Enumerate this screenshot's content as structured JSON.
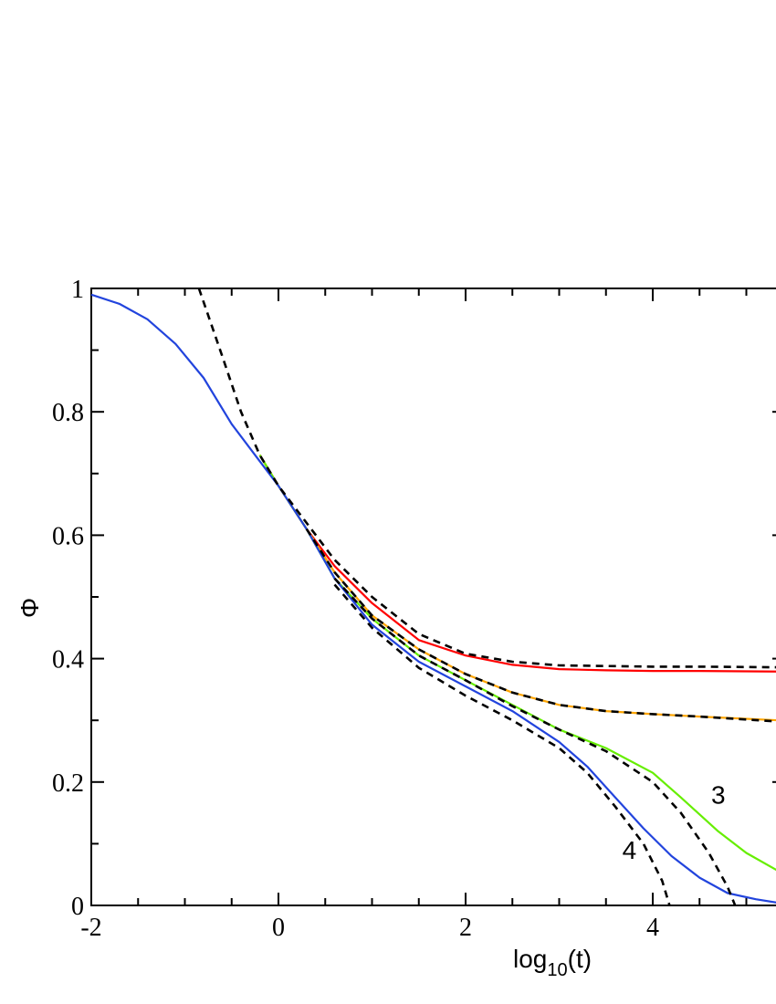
{
  "chart_data": {
    "type": "line",
    "title": "",
    "xlabel": {
      "base": "log",
      "sub": "10",
      "rest": "(t)"
    },
    "ylabel": "Φ",
    "xlim": [
      -2,
      5.35
    ],
    "ylim": [
      0,
      1
    ],
    "x_ticks": [
      "-2",
      "0",
      "2",
      "4"
    ],
    "y_ticks": [
      "0",
      "0.2",
      "0.4",
      "0.6",
      "0.8",
      "1"
    ],
    "grid": false,
    "annotations": [
      {
        "text": "3",
        "x": 4.7,
        "y": 0.18
      },
      {
        "text": "4",
        "x": 3.75,
        "y": 0.09
      }
    ],
    "series": [
      {
        "color": "#ff0000",
        "dash": "solid",
        "points": [
          [
            -0.2,
            0.73
          ],
          [
            0,
            0.68
          ],
          [
            0.3,
            0.61
          ],
          [
            0.6,
            0.55
          ],
          [
            1.0,
            0.49
          ],
          [
            1.5,
            0.43
          ],
          [
            2.0,
            0.405
          ],
          [
            2.5,
            0.39
          ],
          [
            3.0,
            0.383
          ],
          [
            3.5,
            0.381
          ],
          [
            4.0,
            0.38
          ],
          [
            4.5,
            0.38
          ],
          [
            5.35,
            0.379
          ]
        ]
      },
      {
        "color": "#ffa500",
        "dash": "solid",
        "points": [
          [
            -0.2,
            0.73
          ],
          [
            0,
            0.68
          ],
          [
            0.3,
            0.61
          ],
          [
            0.6,
            0.54
          ],
          [
            1.0,
            0.47
          ],
          [
            1.5,
            0.415
          ],
          [
            2.0,
            0.375
          ],
          [
            2.5,
            0.345
          ],
          [
            3.0,
            0.325
          ],
          [
            3.5,
            0.315
          ],
          [
            4.0,
            0.31
          ],
          [
            4.5,
            0.306
          ],
          [
            5.35,
            0.3
          ]
        ]
      },
      {
        "color": "#66ee00",
        "dash": "solid",
        "points": [
          [
            -0.2,
            0.73
          ],
          [
            0,
            0.68
          ],
          [
            0.3,
            0.61
          ],
          [
            0.6,
            0.53
          ],
          [
            1.0,
            0.465
          ],
          [
            1.5,
            0.405
          ],
          [
            2.0,
            0.365
          ],
          [
            2.5,
            0.325
          ],
          [
            3.0,
            0.285
          ],
          [
            3.5,
            0.255
          ],
          [
            4.0,
            0.215
          ],
          [
            4.3,
            0.175
          ],
          [
            4.7,
            0.12
          ],
          [
            5.0,
            0.085
          ],
          [
            5.35,
            0.055
          ]
        ]
      },
      {
        "color": "#2244dd",
        "dash": "solid",
        "points": [
          [
            -2,
            0.99
          ],
          [
            -1.7,
            0.975
          ],
          [
            -1.4,
            0.95
          ],
          [
            -1.1,
            0.91
          ],
          [
            -0.8,
            0.855
          ],
          [
            -0.5,
            0.78
          ],
          [
            -0.2,
            0.72
          ],
          [
            0,
            0.68
          ],
          [
            0.3,
            0.61
          ],
          [
            0.6,
            0.53
          ],
          [
            1.0,
            0.455
          ],
          [
            1.5,
            0.395
          ],
          [
            2.0,
            0.355
          ],
          [
            2.5,
            0.315
          ],
          [
            3.0,
            0.265
          ],
          [
            3.3,
            0.225
          ],
          [
            3.6,
            0.175
          ],
          [
            3.9,
            0.125
          ],
          [
            4.2,
            0.08
          ],
          [
            4.5,
            0.045
          ],
          [
            4.8,
            0.02
          ],
          [
            5.1,
            0.01
          ],
          [
            5.35,
            0.004
          ]
        ]
      },
      {
        "color": "#000000",
        "dash": "8,6",
        "points": [
          [
            -0.85,
            1.0
          ],
          [
            -0.6,
            0.89
          ],
          [
            -0.4,
            0.8
          ],
          [
            -0.2,
            0.73
          ],
          [
            0,
            0.68
          ],
          [
            0.3,
            0.62
          ],
          [
            0.6,
            0.56
          ],
          [
            1.0,
            0.5
          ],
          [
            1.5,
            0.44
          ],
          [
            2.0,
            0.408
          ],
          [
            2.5,
            0.395
          ],
          [
            3.0,
            0.389
          ],
          [
            3.5,
            0.388
          ],
          [
            4.0,
            0.387
          ],
          [
            4.5,
            0.387
          ],
          [
            5.35,
            0.386
          ]
        ]
      },
      {
        "color": "#000000",
        "dash": "8,6",
        "points": [
          [
            0.3,
            0.61
          ],
          [
            0.6,
            0.54
          ],
          [
            1.0,
            0.47
          ],
          [
            1.5,
            0.415
          ],
          [
            2.0,
            0.375
          ],
          [
            2.5,
            0.345
          ],
          [
            3.0,
            0.325
          ],
          [
            3.5,
            0.315
          ],
          [
            4.0,
            0.31
          ],
          [
            4.5,
            0.306
          ],
          [
            5.35,
            0.298
          ]
        ]
      },
      {
        "color": "#000000",
        "dash": "8,6",
        "points": [
          [
            0.6,
            0.53
          ],
          [
            1.0,
            0.465
          ],
          [
            1.5,
            0.405
          ],
          [
            2.0,
            0.365
          ],
          [
            2.5,
            0.323
          ],
          [
            3.0,
            0.285
          ],
          [
            3.5,
            0.25
          ],
          [
            4.0,
            0.2
          ],
          [
            4.3,
            0.15
          ],
          [
            4.6,
            0.085
          ],
          [
            4.8,
            0.03
          ],
          [
            4.88,
            0.0
          ]
        ]
      },
      {
        "color": "#000000",
        "dash": "8,6",
        "points": [
          [
            0.6,
            0.52
          ],
          [
            1.0,
            0.45
          ],
          [
            1.5,
            0.385
          ],
          [
            2.0,
            0.34
          ],
          [
            2.5,
            0.3
          ],
          [
            3.0,
            0.255
          ],
          [
            3.3,
            0.215
          ],
          [
            3.6,
            0.16
          ],
          [
            3.9,
            0.1
          ],
          [
            4.1,
            0.04
          ],
          [
            4.18,
            0.0
          ]
        ]
      }
    ]
  }
}
